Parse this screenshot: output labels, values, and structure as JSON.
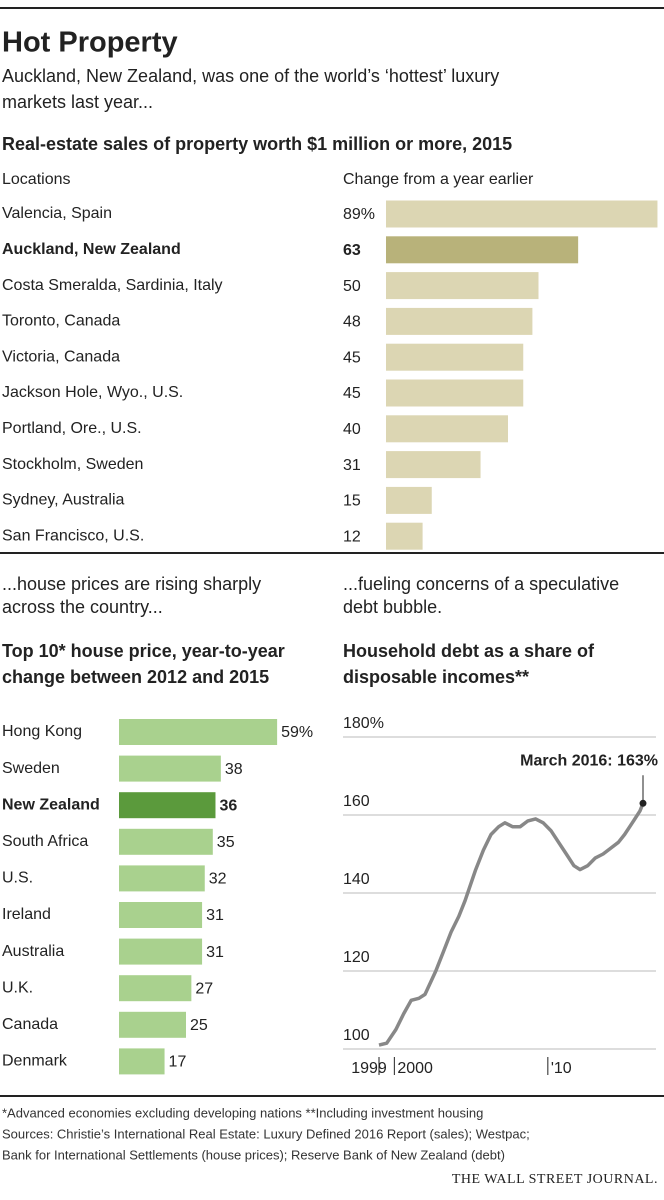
{
  "title": "Hot Property",
  "subtitle": [
    "Auckland, New Zealand, was one of the world’s ‘hottest’ luxury",
    "markets last year..."
  ],
  "chart_data": [
    {
      "type": "hbar",
      "title": [
        "Real-estate sales of property worth $1 million or more, 2015"
      ],
      "column_labels": [
        "Locations",
        "Change from a year earlier"
      ],
      "categories": [
        "Valencia, Spain",
        "Auckland, New Zealand",
        "Costa Smeralda, Sardinia, Italy",
        "Toronto, Canada",
        "Victoria, Canada",
        "Jackson Hole, Wyo., U.S.",
        "Portland, Ore., U.S.",
        "Stockholm, Sweden",
        "Sydney, Australia",
        "San Francisco, U.S."
      ],
      "values": [
        89,
        63,
        50,
        48,
        45,
        45,
        40,
        31,
        15,
        12
      ],
      "value_labels": [
        "89%",
        "63",
        "50",
        "48",
        "45",
        "45",
        "40",
        "31",
        "15",
        "12"
      ],
      "color": "#dcd6b3",
      "highlight_color": "#b8b27a",
      "highlight": 1
    },
    {
      "type": "hbar",
      "subtitle": [
        "...house prices are rising sharply",
        "across the country..."
      ],
      "title": [
        "Top 10* house price, year-to-year",
        "change between 2012 and 2015"
      ],
      "categories": [
        "Hong Kong",
        "Sweden",
        "New Zealand",
        "South Africa",
        "U.S.",
        "Ireland",
        "Australia",
        "U.K.",
        "Canada",
        "Denmark"
      ],
      "values": [
        59,
        38,
        36,
        35,
        32,
        31,
        31,
        27,
        25,
        17
      ],
      "value_labels": [
        "59%",
        "38",
        "36",
        "35",
        "32",
        "31",
        "31",
        "27",
        "25",
        "17"
      ],
      "color": "#a9d18e",
      "highlight_color": "#5b9a3c",
      "highlight": 2
    },
    {
      "type": "line",
      "subtitle": [
        "...fueling concerns of a speculative",
        "debt bubble."
      ],
      "title": [
        "Household debt as a share of",
        "disposable incomes**"
      ],
      "x": [
        1999.0,
        1999.5,
        2000.1,
        2000.6,
        2001.1,
        2001.6,
        2002.0,
        2002.7,
        2003.2,
        2003.7,
        2004.2,
        2004.6,
        2005.3,
        2005.8,
        2006.3,
        2006.8,
        2007.2,
        2007.7,
        2008.2,
        2008.7,
        2009.2,
        2009.7,
        2010.2,
        2010.7,
        2011.2,
        2011.7,
        2012.1,
        2012.6,
        2013.1,
        2013.6,
        2014.1,
        2014.6,
        2015.0,
        2015.5,
        2016.0,
        2016.2
      ],
      "values": [
        101,
        101.5,
        105,
        109,
        112.5,
        113,
        114,
        120,
        125,
        130,
        134,
        138,
        146,
        151,
        155,
        157,
        158,
        157,
        157,
        158.5,
        159,
        158,
        156,
        153,
        150,
        147,
        146,
        147,
        149,
        150,
        151.5,
        153,
        155,
        158,
        161,
        163
      ],
      "color": "#888888",
      "xlim": [
        1999,
        2016.2
      ],
      "xticks": [
        1999,
        2000,
        {
          "value": 2010,
          "label": "'10"
        }
      ],
      "ylim": [
        100,
        180
      ],
      "yticks": [
        100,
        120,
        140,
        160,
        {
          "value": 180,
          "label": "180%"
        }
      ],
      "grid": true,
      "annotation": "March 2016: 163%"
    }
  ],
  "footnotes": [
    "*Advanced economies excluding developing nations   **Including investment housing",
    "Sources: Christie’s International Real Estate: Luxury Defined 2016 Report (sales); Westpac;",
    "Bank for International Settlements (house prices); Reserve Bank of New Zealand (debt)"
  ],
  "credit": "THE WALL STREET JOURNAL."
}
